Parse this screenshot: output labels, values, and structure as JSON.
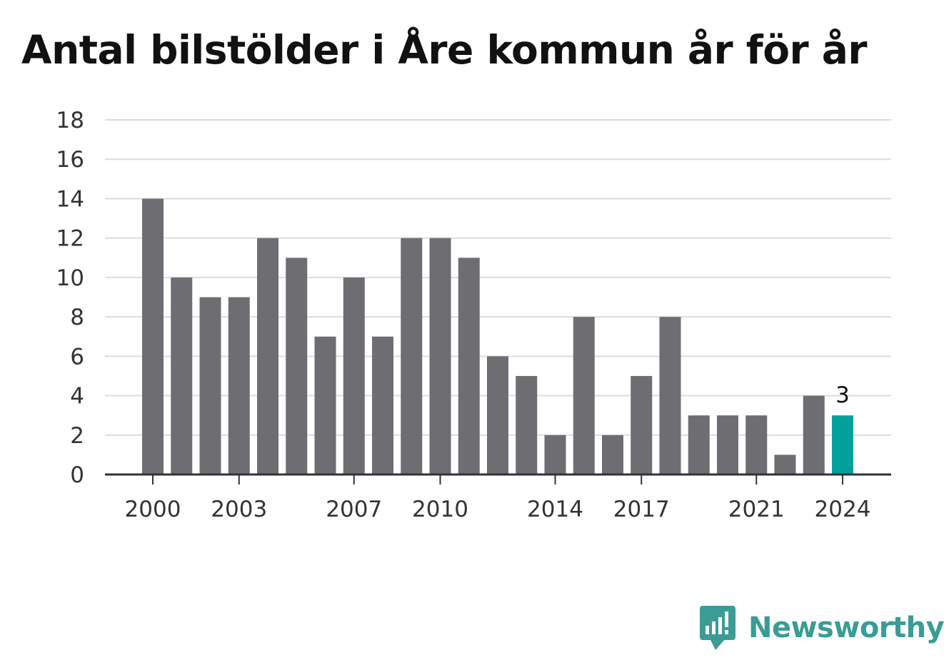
{
  "chart_data": {
    "type": "bar",
    "title": "Antal bilstölder i Åre kommun år för år",
    "xlabel": "",
    "ylabel": "",
    "x": [
      2000,
      2001,
      2002,
      2003,
      2004,
      2005,
      2006,
      2007,
      2008,
      2009,
      2010,
      2011,
      2012,
      2013,
      2014,
      2015,
      2016,
      2017,
      2018,
      2019,
      2020,
      2021,
      2022,
      2023,
      2024
    ],
    "values": [
      14,
      10,
      9,
      9,
      12,
      11,
      7,
      10,
      7,
      12,
      12,
      11,
      6,
      5,
      2,
      8,
      2,
      5,
      8,
      3,
      3,
      3,
      1,
      4,
      3
    ],
    "xticks": [
      "2000",
      "2003",
      "2007",
      "2010",
      "2014",
      "2017",
      "2021",
      "2024"
    ],
    "yticks": [
      0,
      2,
      4,
      6,
      8,
      10,
      12,
      14,
      16,
      18
    ],
    "ylim": [
      0,
      18
    ],
    "grid": true,
    "legend": "none",
    "highlight": {
      "x": 2024,
      "label": "3"
    },
    "colors": {
      "bar": "#6e6d72",
      "highlight": "#00a19a",
      "grid": "#dcdcdc",
      "axis": "#333333"
    }
  },
  "brand": {
    "name": "Newsworthy",
    "icon": "newsworthy-logo-icon",
    "color": "#3a9c95"
  }
}
